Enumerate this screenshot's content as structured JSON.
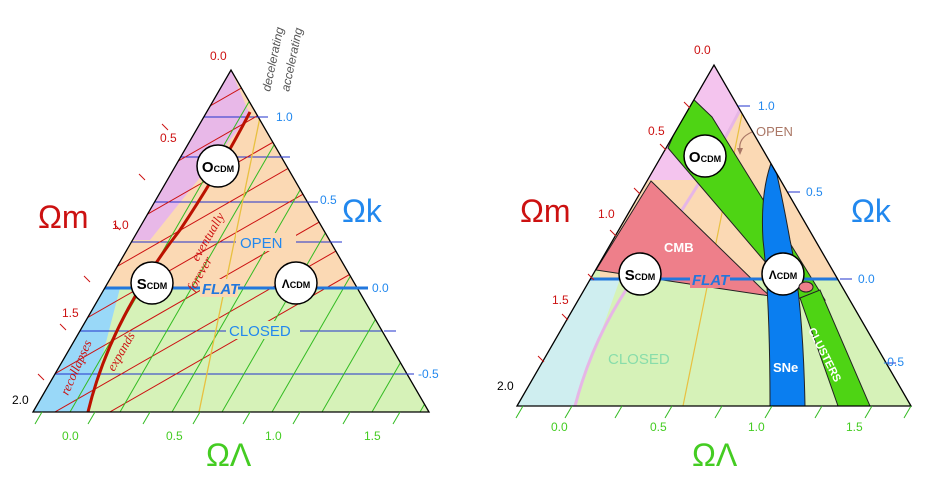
{
  "colors": {
    "omega_m": "#cc1111",
    "omega_k": "#2288ee",
    "omega_lambda": "#44cc22",
    "accel_line": "#e8c040",
    "flat_line": "#2277dd",
    "region_matter": "#e8b8e8",
    "region_open": "#fbd9b4",
    "region_closed": "#d6f2b8",
    "region_recollapse": "#99d8f8",
    "cmb_fill": "#ee7f8a",
    "sne_fill": "#0a7ef0",
    "clusters_fill": "#4ed414"
  },
  "left": {
    "axis_m_label": "Ωm",
    "axis_k_label": "Ωk",
    "axis_lambda_label": "ΩΛ",
    "m_ticks": [
      "0.0",
      "0.5",
      "1.0",
      "1.5",
      "2.0"
    ],
    "k_ticks": [
      "1.0",
      "0.5",
      "0.0",
      "-0.5"
    ],
    "lambda_ticks": [
      "0.0",
      "0.5",
      "1.0",
      "1.5"
    ],
    "decelerating_label": "decelerating",
    "accelerating_label": "accelerating",
    "eventually_label": "eventually",
    "forever_label": "forever",
    "recollapses_label": "recollapses",
    "expands_label": "expands",
    "open_label": "OPEN",
    "flat_label": "FLAT",
    "closed_label": "CLOSED",
    "ocdm_prefix": "O",
    "ocdm_suffix": "CDM",
    "scdm_prefix": "S",
    "scdm_suffix": "CDM",
    "lcdm_prefix": "Λ",
    "lcdm_suffix": "CDM"
  },
  "right": {
    "axis_m_label": "Ωm",
    "axis_k_label": "Ωk",
    "axis_lambda_label": "ΩΛ",
    "m_ticks": [
      "0.0",
      "0.5",
      "1.0",
      "1.5",
      "2.0"
    ],
    "k_ticks": [
      "1.0",
      "0.5",
      "0.0",
      "-0.5"
    ],
    "lambda_ticks": [
      "0.0",
      "0.5",
      "1.0",
      "1.5"
    ],
    "open_label": "OPEN",
    "flat_label": "FLAT",
    "closed_label": "CLOSED",
    "cmb_label": "CMB",
    "sne_label": "SNe",
    "clusters_label": "CLUSTERS",
    "ocdm_prefix": "O",
    "ocdm_suffix": "CDM",
    "scdm_prefix": "S",
    "scdm_suffix": "CDM",
    "lcdm_prefix": "Λ",
    "lcdm_suffix": "CDM"
  }
}
